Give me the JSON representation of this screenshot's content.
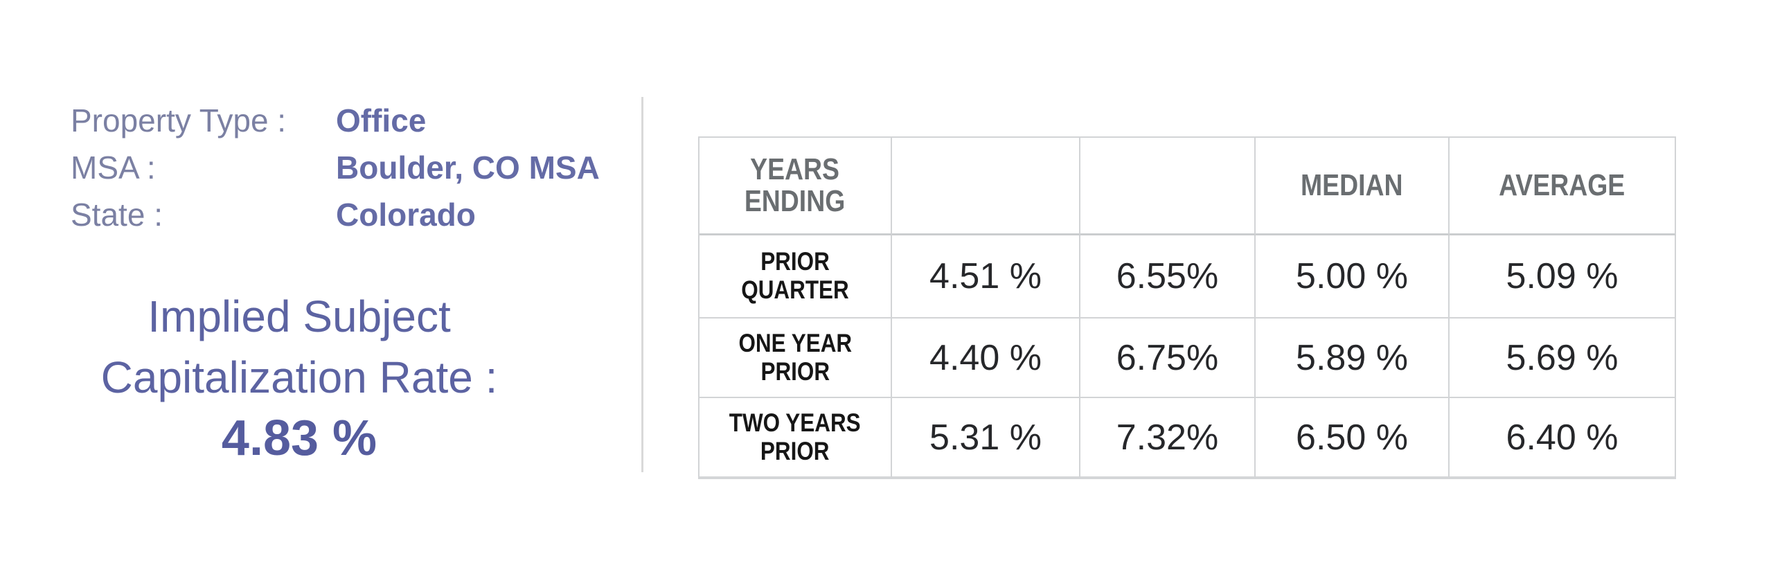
{
  "colors": {
    "heading_blue": "#5c63a2",
    "heading_value_blue": "#555c9e",
    "field_label_blue": "#7b80a3",
    "field_value_blue": "#646ba6",
    "table_header_gray": "#6a6e71",
    "row_label_black": "#161616",
    "cell_text": "#26272a",
    "border_gray": "#d2d4d6",
    "divider_gray": "#d9d9d9"
  },
  "panel": {
    "fields": [
      {
        "label": "Property Type :",
        "value": "Office"
      },
      {
        "label": "MSA :",
        "value": "Boulder, CO MSA"
      },
      {
        "label": "State :",
        "value": "Colorado"
      }
    ],
    "cap_rate": {
      "title_line1": "Implied Subject",
      "title_line2": "Capitalization Rate :",
      "value": "4.83 %"
    }
  },
  "table": {
    "headers": [
      "YEARS\nENDING",
      "",
      "",
      "MEDIAN",
      "AVERAGE"
    ],
    "rows": [
      {
        "label": "PRIOR QUARTER",
        "values": [
          "4.51 %",
          "6.55%",
          "5.00 %",
          "5.09 %"
        ]
      },
      {
        "label": "ONE YEAR\nPRIOR",
        "values": [
          "4.40 %",
          "6.75%",
          "5.89 %",
          "5.69 %"
        ]
      },
      {
        "label": "TWO YEARS\nPRIOR",
        "values": [
          "5.31 %",
          "7.32%",
          "6.50 %",
          "6.40 %"
        ]
      }
    ]
  }
}
